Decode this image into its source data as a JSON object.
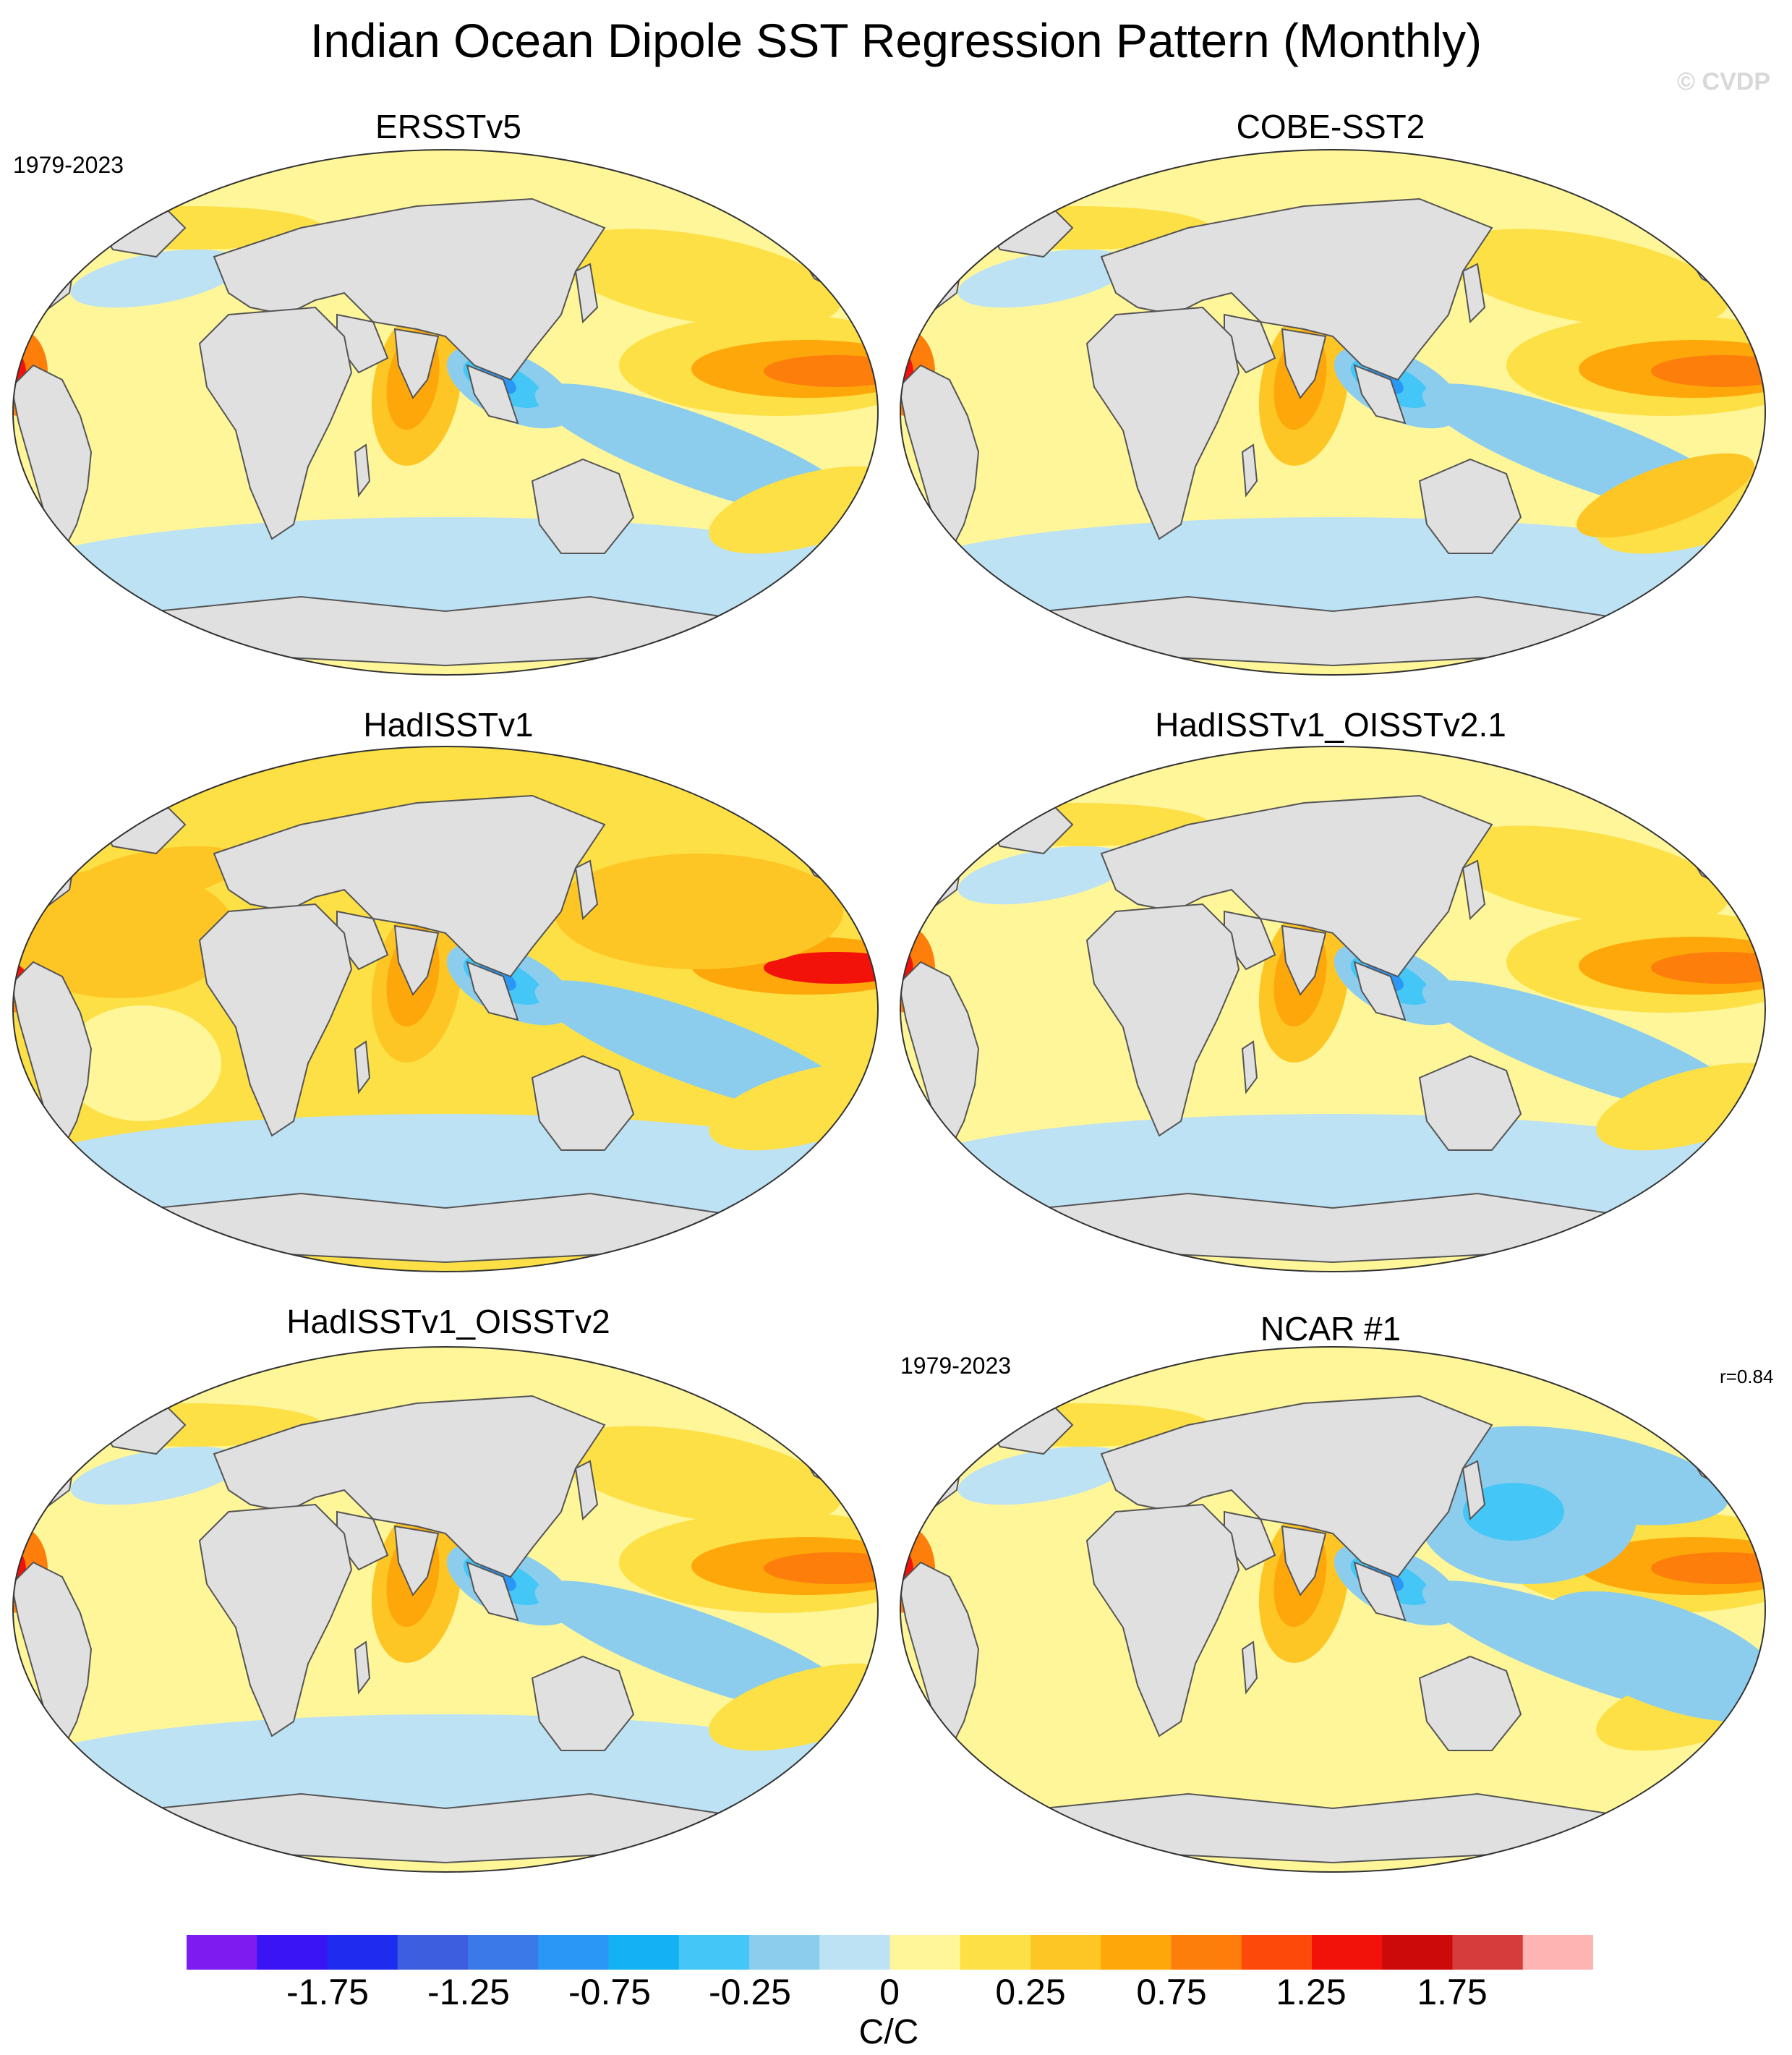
{
  "title": "Indian Ocean Dipole SST Regression Pattern (Monthly)",
  "copyright": "© CVDP",
  "panels": [
    {
      "name": "ERSSTv5",
      "period": "1979-2023",
      "corr": ""
    },
    {
      "name": "COBE-SST2",
      "period": "",
      "corr": ""
    },
    {
      "name": "HadISSTv1",
      "period": "",
      "corr": ""
    },
    {
      "name": "HadISSTv1_OISSTv2.1",
      "period": "",
      "corr": ""
    },
    {
      "name": "HadISSTv1_OISSTv2",
      "period": "",
      "corr": ""
    },
    {
      "name": "NCAR #1",
      "period": "1979-2023",
      "corr": "r=0.84"
    }
  ],
  "colorbar": {
    "units": "C/C",
    "labels": [
      "-1.75",
      "-1.25",
      "-0.75",
      "-0.25",
      "0",
      "0.25",
      "0.75",
      "1.25",
      "1.75"
    ],
    "colors": [
      "#7c1cf0",
      "#3a14f5",
      "#1e2cf0",
      "#3e5ee0",
      "#3a7ae8",
      "#2a96f5",
      "#14b2f5",
      "#44c6f7",
      "#8ccdee",
      "#bde2f4",
      "#fff699",
      "#fde045",
      "#fdc625",
      "#fda70a",
      "#fd7e0a",
      "#fd4a0a",
      "#f2120a",
      "#cc0a0a",
      "#d63c3c",
      "#ffb4b4"
    ]
  },
  "legend_colors": {
    "land": "#e0e0e0",
    "coast": "#555555",
    "neutral_warm": "#fff699",
    "warm": "#fde045",
    "warmer": "#fdc625",
    "hot": "#fda70a",
    "hotter": "#fd7e0a",
    "hottest": "#f2120a",
    "cool": "#bde2f4",
    "cooler": "#8ccdee",
    "cold": "#44c6f7",
    "colder": "#2a96f5"
  }
}
